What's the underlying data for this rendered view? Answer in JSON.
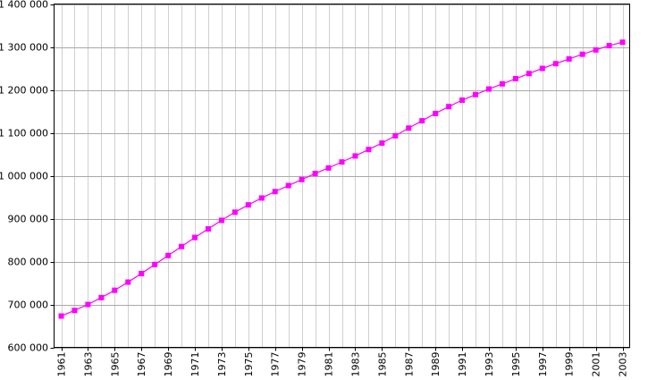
{
  "chart_data": {
    "type": "line",
    "title": "",
    "xlabel": "",
    "ylabel": "",
    "x": [
      1961,
      1962,
      1963,
      1964,
      1965,
      1966,
      1967,
      1968,
      1969,
      1970,
      1971,
      1972,
      1973,
      1974,
      1975,
      1976,
      1977,
      1978,
      1979,
      1980,
      1981,
      1982,
      1983,
      1984,
      1985,
      1986,
      1987,
      1988,
      1989,
      1990,
      1991,
      1992,
      1993,
      1994,
      1995,
      1996,
      1997,
      1998,
      1999,
      2000,
      2001,
      2002,
      2003
    ],
    "xlim": [
      1961,
      2003
    ],
    "x_tick_labels": [
      "1961",
      "1963",
      "1965",
      "1967",
      "1969",
      "1971",
      "1973",
      "1975",
      "1977",
      "1979",
      "1981",
      "1983",
      "1985",
      "1987",
      "1989",
      "1991",
      "1993",
      "1995",
      "1997",
      "1999",
      "2001",
      "2003"
    ],
    "ylim": [
      600000,
      1400000
    ],
    "y_ticks": [
      600000,
      700000,
      800000,
      900000,
      1000000,
      1100000,
      1200000,
      1300000,
      1400000
    ],
    "y_tick_labels": [
      "600 000",
      "700 000",
      "800 000",
      "900 000",
      "1 000 000",
      "1 100 000",
      "1 200 000",
      "1 300 000",
      "1 400 000"
    ],
    "grid": true,
    "legend": "none",
    "series": [
      {
        "color": "#ff00ff",
        "marker": "square",
        "values": [
          673000,
          686000,
          700000,
          716000,
          733000,
          752000,
          772000,
          793000,
          814000,
          835000,
          856000,
          876000,
          896000,
          915000,
          932000,
          948000,
          963000,
          977000,
          991000,
          1005000,
          1018000,
          1032000,
          1046000,
          1061000,
          1076000,
          1093000,
          1111000,
          1128000,
          1145000,
          1161000,
          1176000,
          1189000,
          1202000,
          1214000,
          1226000,
          1238000,
          1250000,
          1261000,
          1272000,
          1283000,
          1293000,
          1303000,
          1311000
        ]
      }
    ]
  }
}
